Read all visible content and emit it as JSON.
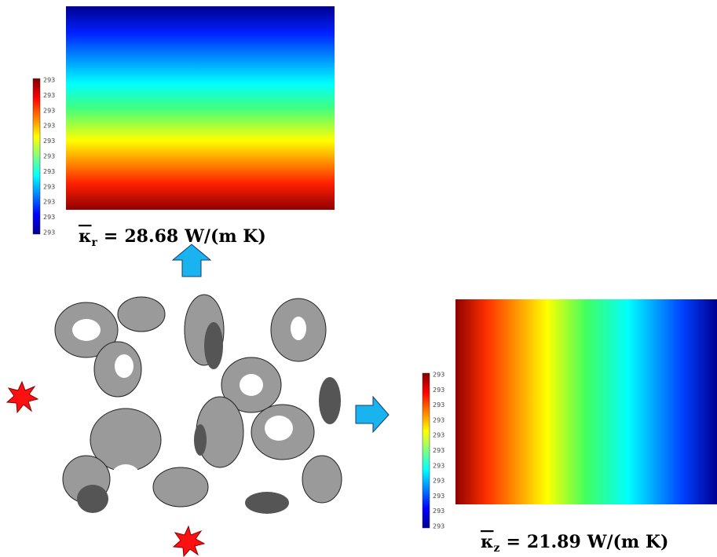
{
  "top_colorbar": {
    "labels": [
      "293",
      "293",
      "293",
      "293",
      "293",
      "293",
      "293",
      "293",
      "293",
      "293",
      "293"
    ]
  },
  "top_result": {
    "symbol": "κ",
    "subscript": "r",
    "relation": "=",
    "value": "28.68",
    "unit": "W/(m K)"
  },
  "right_colorbar": {
    "labels": [
      "293",
      "293",
      "293",
      "293",
      "293",
      "293",
      "293",
      "293",
      "293",
      "293",
      "293"
    ]
  },
  "right_result": {
    "symbol": "κ",
    "subscript": "z",
    "relation": "=",
    "value": "21.89",
    "unit": "W/(m K)"
  }
}
